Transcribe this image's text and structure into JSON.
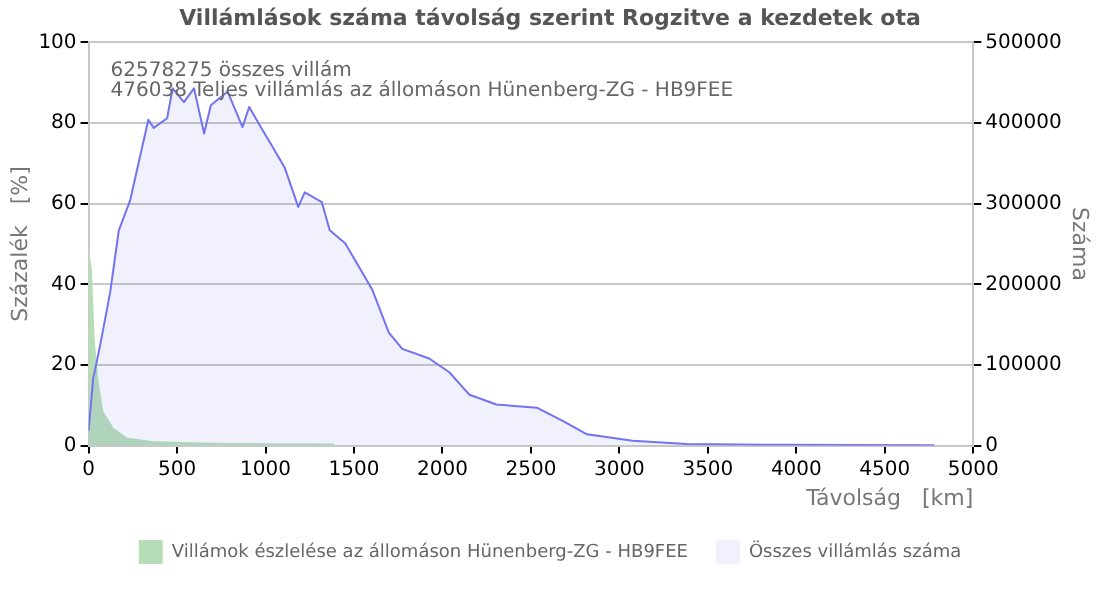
{
  "chart_data": {
    "type": "area",
    "title": "Villámlások száma távolság szerint Rogzitve a kezdetek ota",
    "xlabel": "Távolság   [km]",
    "ylabel": "Százalék   [%]",
    "y2label": "Száma",
    "annotations": [
      "62578275 összes villám",
      "476038 Teljes villámlás az állomáson Hünenberg-ZG - HB9FEE"
    ],
    "series": [
      {
        "name": "Villámok észlelése az állomáson Hünenberg-ZG - HB9FEE",
        "color": "#b6deb6",
        "x": [
          0,
          19,
          34,
          57,
          83,
          140,
          216,
          368,
          700,
          1000,
          1390
        ],
        "values": [
          49.4,
          43.6,
          26.5,
          15.8,
          8.5,
          4.4,
          2,
          1.1,
          0.7,
          0.6,
          0.5
        ]
      },
      {
        "name": "Összes villámlás száma",
        "color": "#7373f0",
        "axis": "y2",
        "x": [
          0,
          26,
          65,
          122,
          171,
          235,
          285,
          338,
          368,
          444,
          475,
          539,
          596,
          653,
          691,
          786,
          870,
          908,
          976,
          1033,
          1108,
          1185,
          1222,
          1318,
          1363,
          1450,
          1602,
          1697,
          1773,
          1925,
          2039,
          2153,
          2305,
          2533,
          2685,
          2817,
          3075,
          3380,
          3900,
          4780
        ],
        "values": [
          18000,
          83000,
          124000,
          190000,
          267000,
          304000,
          353000,
          404000,
          394000,
          406000,
          443000,
          426000,
          443000,
          387000,
          422000,
          439000,
          395000,
          420000,
          394000,
          373000,
          345000,
          296000,
          314000,
          302000,
          267000,
          251000,
          194000,
          140000,
          120000,
          108000,
          91000,
          63000,
          51000,
          47000,
          30000,
          14000,
          6000,
          2000,
          1000,
          500
        ]
      }
    ],
    "xlim": [
      0,
      5000
    ],
    "xticks": [
      0,
      500,
      1000,
      1500,
      2000,
      2500,
      3000,
      3500,
      4000,
      4500,
      5000
    ],
    "ylim": [
      0,
      100
    ],
    "yticks": [
      0,
      20,
      40,
      60,
      80,
      100
    ],
    "y2lim": [
      0,
      500000
    ],
    "y2ticks": [
      0,
      100000,
      200000,
      300000,
      400000,
      500000
    ],
    "grid": "y",
    "legend": "bottom"
  }
}
